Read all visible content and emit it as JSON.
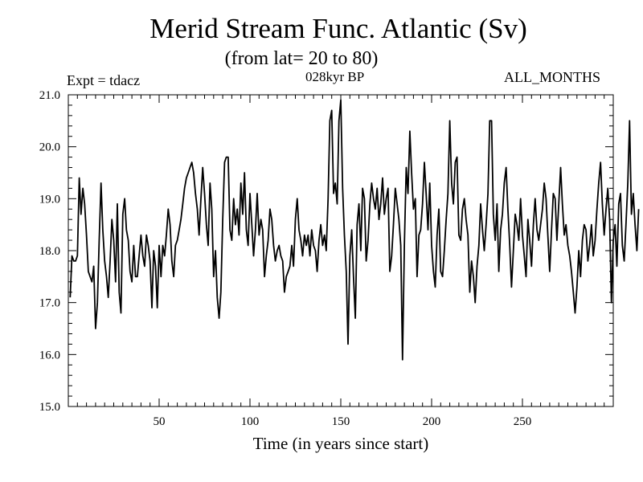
{
  "chart_data": {
    "type": "line",
    "title": "Merid Stream Func. Atlantic (Sv)",
    "subtitle": "(from lat= 20 to 80)",
    "annotations": {
      "left": "Expt = tdacz",
      "center": "028kyr BP",
      "right": "ALL_MONTHS"
    },
    "xlabel": "Time (in years since start)",
    "ylabel": "",
    "xlim": [
      0,
      300
    ],
    "ylim": [
      15.0,
      21.0
    ],
    "xticks": [
      50,
      100,
      150,
      200,
      250
    ],
    "xtick_labels": [
      "50",
      "100",
      "150",
      "200",
      "250"
    ],
    "yticks": [
      15.0,
      16.0,
      17.0,
      18.0,
      19.0,
      20.0,
      21.0
    ],
    "ytick_labels": [
      "15.0",
      "16.0",
      "17.0",
      "18.0",
      "19.0",
      "20.0",
      "21.0"
    ],
    "grid": false,
    "series": [
      {
        "name": "Merid Stream Func. Atlantic",
        "x_start": 1,
        "x_step": 1,
        "values": [
          17.1,
          17.9,
          17.8,
          17.8,
          17.9,
          19.4,
          18.7,
          19.2,
          18.9,
          18.3,
          17.6,
          17.5,
          17.4,
          17.7,
          16.5,
          17.0,
          18.2,
          19.3,
          18.4,
          17.8,
          17.5,
          17.1,
          17.8,
          18.6,
          18.2,
          17.4,
          18.9,
          17.2,
          16.8,
          18.7,
          19.0,
          18.4,
          18.2,
          17.6,
          17.4,
          18.1,
          17.5,
          17.5,
          17.9,
          18.3,
          17.9,
          17.7,
          18.3,
          18.1,
          17.8,
          16.9,
          18.0,
          17.7,
          16.9,
          18.1,
          17.5,
          18.1,
          17.9,
          18.3,
          18.8,
          18.5,
          17.8,
          17.5,
          18.1,
          18.2,
          18.4,
          18.6,
          18.9,
          19.2,
          19.4,
          19.5,
          19.6,
          19.7,
          19.5,
          19.1,
          18.8,
          18.3,
          19.0,
          19.6,
          19.1,
          18.5,
          18.1,
          19.3,
          18.8,
          17.5,
          18.0,
          17.1,
          16.7,
          17.2,
          18.6,
          19.7,
          19.8,
          19.8,
          18.4,
          18.2,
          19.0,
          18.5,
          18.8,
          18.3,
          19.3,
          18.7,
          19.5,
          18.4,
          18.1,
          19.1,
          18.5,
          17.9,
          18.4,
          19.1,
          18.3,
          18.6,
          18.4,
          17.5,
          17.9,
          18.2,
          18.8,
          18.6,
          18.1,
          17.8,
          18.0,
          18.1,
          17.9,
          17.8,
          17.2,
          17.5,
          17.6,
          17.7,
          18.1,
          17.7,
          18.6,
          19.0,
          18.4,
          18.2,
          17.9,
          18.3,
          18.1,
          18.3,
          17.9,
          18.4,
          18.1,
          18.0,
          17.6,
          18.2,
          18.5,
          18.1,
          18.3,
          18.0,
          19.0,
          20.5,
          20.7,
          19.1,
          19.3,
          18.9,
          20.5,
          20.9,
          19.2,
          18.3,
          17.6,
          16.2,
          17.9,
          18.4,
          17.5,
          16.7,
          18.5,
          18.9,
          18.0,
          19.2,
          19.0,
          17.8,
          18.2,
          18.9,
          19.3,
          19.0,
          18.8,
          19.2,
          18.6,
          18.9,
          19.4,
          18.7,
          19.0,
          19.2,
          17.6,
          17.9,
          18.5,
          19.2,
          18.9,
          18.6,
          18.1,
          15.9,
          18.1,
          19.6,
          19.1,
          20.3,
          19.5,
          18.8,
          19.0,
          17.5,
          18.3,
          18.4,
          18.9,
          19.7,
          19.1,
          18.4,
          19.3,
          18.1,
          17.6,
          17.3,
          18.3,
          18.8,
          17.6,
          17.5,
          18.0,
          18.6,
          19.1,
          20.5,
          19.3,
          18.9,
          19.7,
          19.8,
          18.3,
          18.2,
          18.8,
          19.0,
          18.6,
          18.3,
          17.2,
          17.8,
          17.5,
          17.0,
          17.7,
          18.1,
          18.9,
          18.4,
          18.0,
          18.5,
          19.1,
          20.5,
          20.5,
          18.7,
          18.2,
          18.9,
          17.6,
          18.4,
          18.7,
          19.3,
          19.6,
          18.8,
          18.1,
          17.3,
          18.0,
          18.7,
          18.5,
          18.2,
          19.0,
          18.3,
          17.9,
          17.5,
          18.6,
          18.2,
          17.7,
          18.5,
          19.0,
          18.4,
          18.2,
          18.5,
          18.8,
          19.3,
          19.0,
          18.3,
          17.6,
          18.4,
          19.1,
          19.0,
          18.2,
          18.9,
          19.6,
          18.9,
          18.3,
          18.5,
          18.1,
          17.9,
          17.6,
          17.2,
          16.8,
          17.3,
          18.0,
          17.5,
          18.2,
          18.5,
          18.4,
          17.8,
          18.1,
          18.5,
          17.9,
          18.2,
          18.8,
          19.3,
          19.7,
          18.9,
          18.3,
          18.8,
          19.2,
          18.6,
          17.0,
          18.2,
          18.5,
          17.7,
          18.9,
          19.1,
          18.1,
          17.8,
          18.5,
          19.3,
          20.5,
          18.7,
          19.1,
          18.5,
          18.0,
          18.8
        ]
      }
    ]
  }
}
